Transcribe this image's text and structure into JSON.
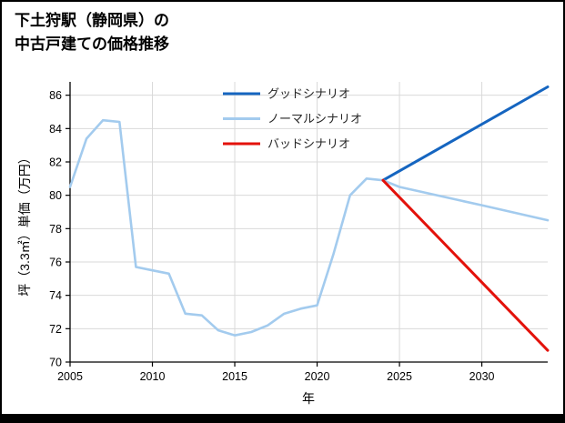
{
  "title": {
    "line1": "下土狩駅（静岡県）の",
    "line2": "中古戸建ての価格推移"
  },
  "chart_data": {
    "type": "line",
    "title": "下土狩駅（静岡県）の中古戸建ての価格推移",
    "xlabel": "年",
    "ylabel": "坪（3.3㎡）単価（万円）",
    "xlim": [
      2005,
      2034
    ],
    "ylim": [
      70,
      86
    ],
    "xticks": [
      2005,
      2010,
      2015,
      2020,
      2025,
      2030
    ],
    "yticks": [
      70,
      72,
      74,
      76,
      78,
      80,
      82,
      84,
      86
    ],
    "grid": true,
    "grid_color": "#d9d9d9",
    "legend_position": "upper-center-inside",
    "series": [
      {
        "id": "good",
        "name": "グッドシナリオ",
        "color": "#1565c0",
        "width": 3,
        "x": [
          2024,
          2034
        ],
        "y": [
          80.9,
          86.5
        ]
      },
      {
        "id": "normal",
        "name": "ノーマルシナリオ",
        "color": "#a3cbee",
        "width": 2.6,
        "x": [
          2005,
          2006,
          2007,
          2008,
          2009,
          2010,
          2011,
          2012,
          2013,
          2014,
          2015,
          2016,
          2017,
          2018,
          2019,
          2020,
          2021,
          2022,
          2023,
          2024,
          2025,
          2030,
          2034
        ],
        "y": [
          80.5,
          83.4,
          84.5,
          84.4,
          75.7,
          75.5,
          75.3,
          72.9,
          72.8,
          71.9,
          71.6,
          71.8,
          72.2,
          72.9,
          73.2,
          73.4,
          76.5,
          80.0,
          81.0,
          80.9,
          80.5,
          79.4,
          78.5
        ]
      },
      {
        "id": "bad",
        "name": "バッドシナリオ",
        "color": "#e3120b",
        "width": 3,
        "x": [
          2024,
          2034
        ],
        "y": [
          80.9,
          70.7
        ]
      }
    ]
  }
}
